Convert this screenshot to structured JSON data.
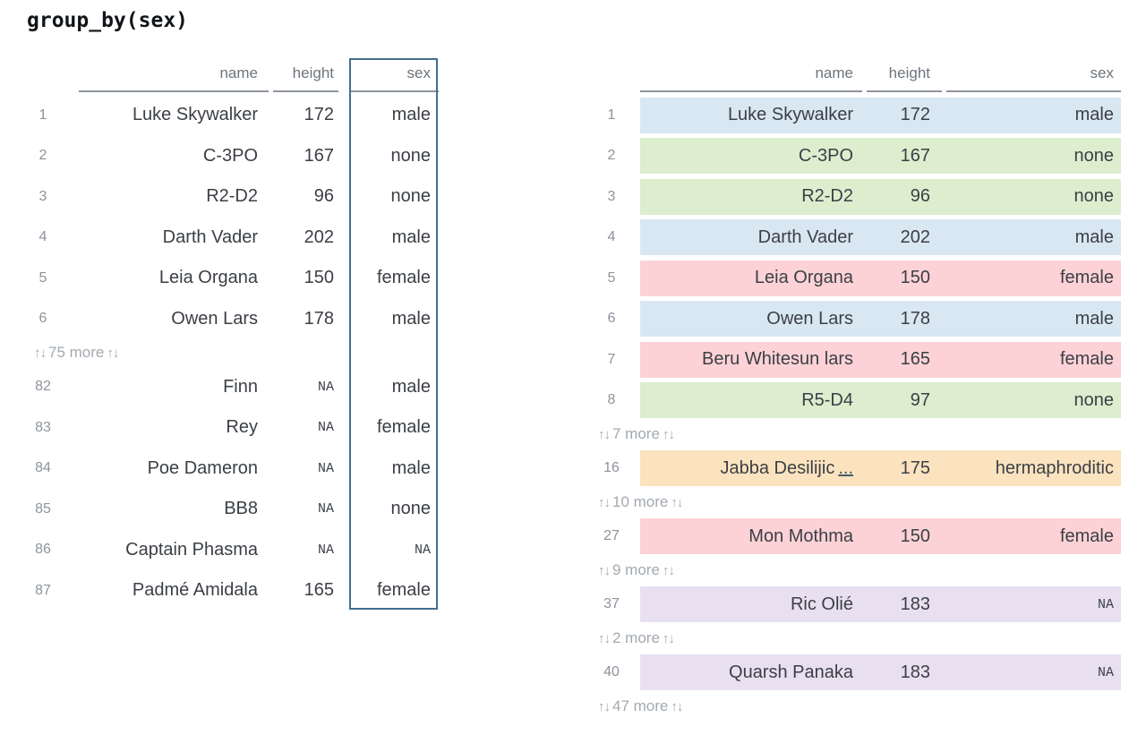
{
  "title": "group_by(sex)",
  "icons": {
    "updown_arrow": "↑↓"
  },
  "colors": {
    "group_male": "#d9e7f3",
    "group_none": "#ddeecf",
    "group_female": "#fcd2d6",
    "group_hermaphroditic": "#fbe3bf",
    "group_na": "#e8e0f1",
    "highlight_box_border": "#42708f",
    "header_text": "#6e747c",
    "cell_text": "#3b3f45",
    "row_number_text": "#8d939b",
    "skip_text": "#a3a9af"
  },
  "left_table": {
    "columns": {
      "name": "name",
      "height": "height",
      "sex": "sex"
    },
    "skip": {
      "label": "75 more"
    },
    "rows": [
      {
        "num": "1",
        "name": "Luke Skywalker",
        "height": "172",
        "sex": "male"
      },
      {
        "num": "2",
        "name": "C-3PO",
        "height": "167",
        "sex": "none"
      },
      {
        "num": "3",
        "name": "R2-D2",
        "height": "96",
        "sex": "none"
      },
      {
        "num": "4",
        "name": "Darth Vader",
        "height": "202",
        "sex": "male"
      },
      {
        "num": "5",
        "name": "Leia Organa",
        "height": "150",
        "sex": "female"
      },
      {
        "num": "6",
        "name": "Owen Lars",
        "height": "178",
        "sex": "male"
      },
      {
        "num": "82",
        "name": "Finn",
        "height": "NA",
        "sex": "male"
      },
      {
        "num": "83",
        "name": "Rey",
        "height": "NA",
        "sex": "female"
      },
      {
        "num": "84",
        "name": "Poe Dameron",
        "height": "NA",
        "sex": "male"
      },
      {
        "num": "85",
        "name": "BB8",
        "height": "NA",
        "sex": "none"
      },
      {
        "num": "86",
        "name": "Captain Phasma",
        "height": "NA",
        "sex": "NA"
      },
      {
        "num": "87",
        "name": "Padmé Amidala",
        "height": "165",
        "sex": "female"
      }
    ]
  },
  "right_table": {
    "columns": {
      "name": "name",
      "height": "height",
      "sex": "sex"
    },
    "skips": [
      {
        "label": "7 more"
      },
      {
        "label": "10 more"
      },
      {
        "label": "9 more"
      },
      {
        "label": "2 more"
      },
      {
        "label": "47 more"
      }
    ],
    "rows": [
      {
        "num": "1",
        "name": "Luke Skywalker",
        "height": "172",
        "sex": "male",
        "group": "male"
      },
      {
        "num": "2",
        "name": "C-3PO",
        "height": "167",
        "sex": "none",
        "group": "none"
      },
      {
        "num": "3",
        "name": "R2-D2",
        "height": "96",
        "sex": "none",
        "group": "none"
      },
      {
        "num": "4",
        "name": "Darth Vader",
        "height": "202",
        "sex": "male",
        "group": "male"
      },
      {
        "num": "5",
        "name": "Leia Organa",
        "height": "150",
        "sex": "female",
        "group": "female"
      },
      {
        "num": "6",
        "name": "Owen Lars",
        "height": "178",
        "sex": "male",
        "group": "male"
      },
      {
        "num": "7",
        "name": "Beru Whitesun lars",
        "height": "165",
        "sex": "female",
        "group": "female"
      },
      {
        "num": "8",
        "name": "R5-D4",
        "height": "97",
        "sex": "none",
        "group": "none"
      },
      {
        "num": "16",
        "name": "Jabba Desilijic",
        "ellipsis": "...",
        "height": "175",
        "sex": "hermaphroditic",
        "group": "hermaphroditic"
      },
      {
        "num": "27",
        "name": "Mon Mothma",
        "height": "150",
        "sex": "female",
        "group": "female"
      },
      {
        "num": "37",
        "name": "Ric Olié",
        "height": "183",
        "sex": "NA",
        "group": "na"
      },
      {
        "num": "40",
        "name": "Quarsh Panaka",
        "height": "183",
        "sex": "NA",
        "group": "na"
      }
    ]
  }
}
